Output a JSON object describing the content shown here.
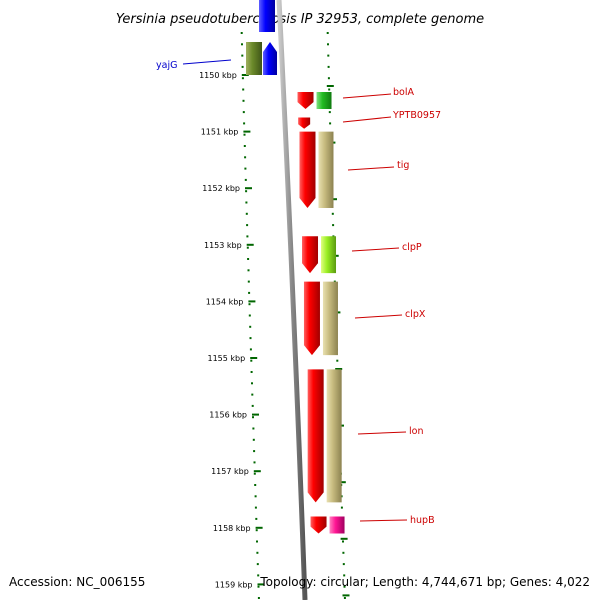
{
  "title": "Yersinia pseudotuberculosis IP 32953, complete genome",
  "footer": {
    "accession": "Accession: NC_006155",
    "topology": "Topology: circular; Length: 4,744,671 bp; Genes: 4,022"
  },
  "colors": {
    "label_red": "#cc0000",
    "label_blue": "#0000cc",
    "tick_green": "#006600",
    "backbone": "#888888"
  },
  "ticks": [
    {
      "label": "1150 kbp",
      "kbp": 1150
    },
    {
      "label": "1151 kbp",
      "kbp": 1151
    },
    {
      "label": "1152 kbp",
      "kbp": 1152
    },
    {
      "label": "1153 kbp",
      "kbp": 1153
    },
    {
      "label": "1154 kbp",
      "kbp": 1154
    },
    {
      "label": "1155 kbp",
      "kbp": 1155
    },
    {
      "label": "1156 kbp",
      "kbp": 1156
    },
    {
      "label": "1157 kbp",
      "kbp": 1157
    },
    {
      "label": "1158 kbp",
      "kbp": 1158
    },
    {
      "label": "1159 kbp",
      "kbp": 1159
    }
  ],
  "genes": [
    {
      "name": "yajG",
      "label_color": "blue",
      "strand": "forward",
      "start_kbp": 1149.7,
      "end_kbp": 1150.0
    },
    {
      "name": "bolA",
      "label_color": "red",
      "strand": "reverse",
      "start_kbp": 1150.3,
      "end_kbp": 1150.6
    },
    {
      "name": "YPTB0957",
      "label_color": "red",
      "strand": "reverse",
      "start_kbp": 1150.75,
      "end_kbp": 1150.95
    },
    {
      "name": "tig",
      "label_color": "red",
      "strand": "reverse",
      "start_kbp": 1151.0,
      "end_kbp": 1152.35
    },
    {
      "name": "clpP",
      "label_color": "red",
      "strand": "reverse",
      "start_kbp": 1152.85,
      "end_kbp": 1153.5
    },
    {
      "name": "clpX",
      "label_color": "red",
      "strand": "reverse",
      "start_kbp": 1153.65,
      "end_kbp": 1154.95
    },
    {
      "name": "lon",
      "label_color": "red",
      "strand": "reverse",
      "start_kbp": 1155.2,
      "end_kbp": 1157.55
    },
    {
      "name": "hupB",
      "label_color": "red",
      "strand": "reverse",
      "start_kbp": 1157.8,
      "end_kbp": 1158.1
    }
  ]
}
